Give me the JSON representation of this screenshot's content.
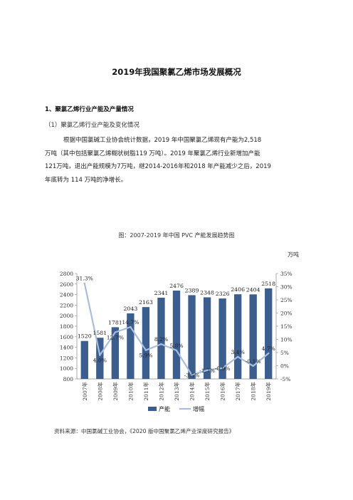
{
  "document": {
    "title": "2019年我国聚氯乙烯市场发展概况",
    "section": "1、聚氯乙烯行业产能及产量情况",
    "subsection": "（1）聚氯乙烯行业产能及变化情况",
    "paragraph_lines": [
      "根据中国氯碱工业协会统计数据，2019 年中国聚氯乙烯现有产能为2,518",
      "万吨（其中包括聚氯乙烯糊状树脂119 万吨）。2019 年聚氯乙烯行业新增加产能",
      "121万吨，退出产能规模为7万吨，继2014-2016年和2018 年产能减少之后，2019",
      "年底转为 114 万吨的净增长。"
    ],
    "figure_caption": "图：2007-2019 年中国 PVC 产能发展趋势图",
    "unit_label": "万吨",
    "source": "资料来源：中国氯碱工业协会，《2020 版中国聚氯乙烯产业深度研究报告》"
  },
  "chart_data": {
    "type": "bar",
    "categories": [
      "2007年",
      "2008年",
      "2009年",
      "2010年",
      "2011年",
      "2012年",
      "2013年",
      "2014年",
      "2015年",
      "2016年",
      "2017年",
      "2018年",
      "2019年"
    ],
    "series": [
      {
        "name": "产能",
        "type": "bar",
        "axis": "left",
        "values": [
          1520,
          1581,
          1781,
          2043,
          2163,
          2341,
          2476,
          2389,
          2348,
          2326,
          2406,
          2404,
          2518
        ],
        "labels": [
          "1520",
          "1581",
          "1781",
          "2043",
          "2163",
          "2341",
          "2476",
          "2389",
          "2348",
          "2326",
          "2406",
          "2404",
          "2518"
        ]
      },
      {
        "name": "增幅",
        "type": "line",
        "axis": "right",
        "values": [
          31.3,
          4.0,
          12.7,
          14.7,
          5.9,
          8.2,
          5.8,
          -3.5,
          -1.7,
          -0.9,
          3.4,
          -0.1,
          4.7
        ],
        "labels": [
          "31.3%",
          "4.0%",
          "12.7%",
          "14.7%",
          "5.9%",
          "8.2%",
          "5.8%",
          "-3.5%",
          "-1.7%",
          "-0.9%",
          "3.4%",
          "-0.1%",
          "4.7%"
        ]
      }
    ],
    "left_axis": {
      "min": 800,
      "max": 2800,
      "ticks": [
        "800",
        "1000",
        "1200",
        "1400",
        "1600",
        "1800",
        "2000",
        "2200",
        "2400",
        "2600",
        "2800"
      ]
    },
    "right_axis": {
      "min": -5,
      "max": 35,
      "ticks": [
        "-5%",
        "0%",
        "5%",
        "10%",
        "15%",
        "20%",
        "25%",
        "30%",
        "35%"
      ]
    },
    "legend_position": "bottom",
    "colors": {
      "bar": "#3b5e8f",
      "line": "#a8bedc",
      "axis": "#888888"
    }
  }
}
